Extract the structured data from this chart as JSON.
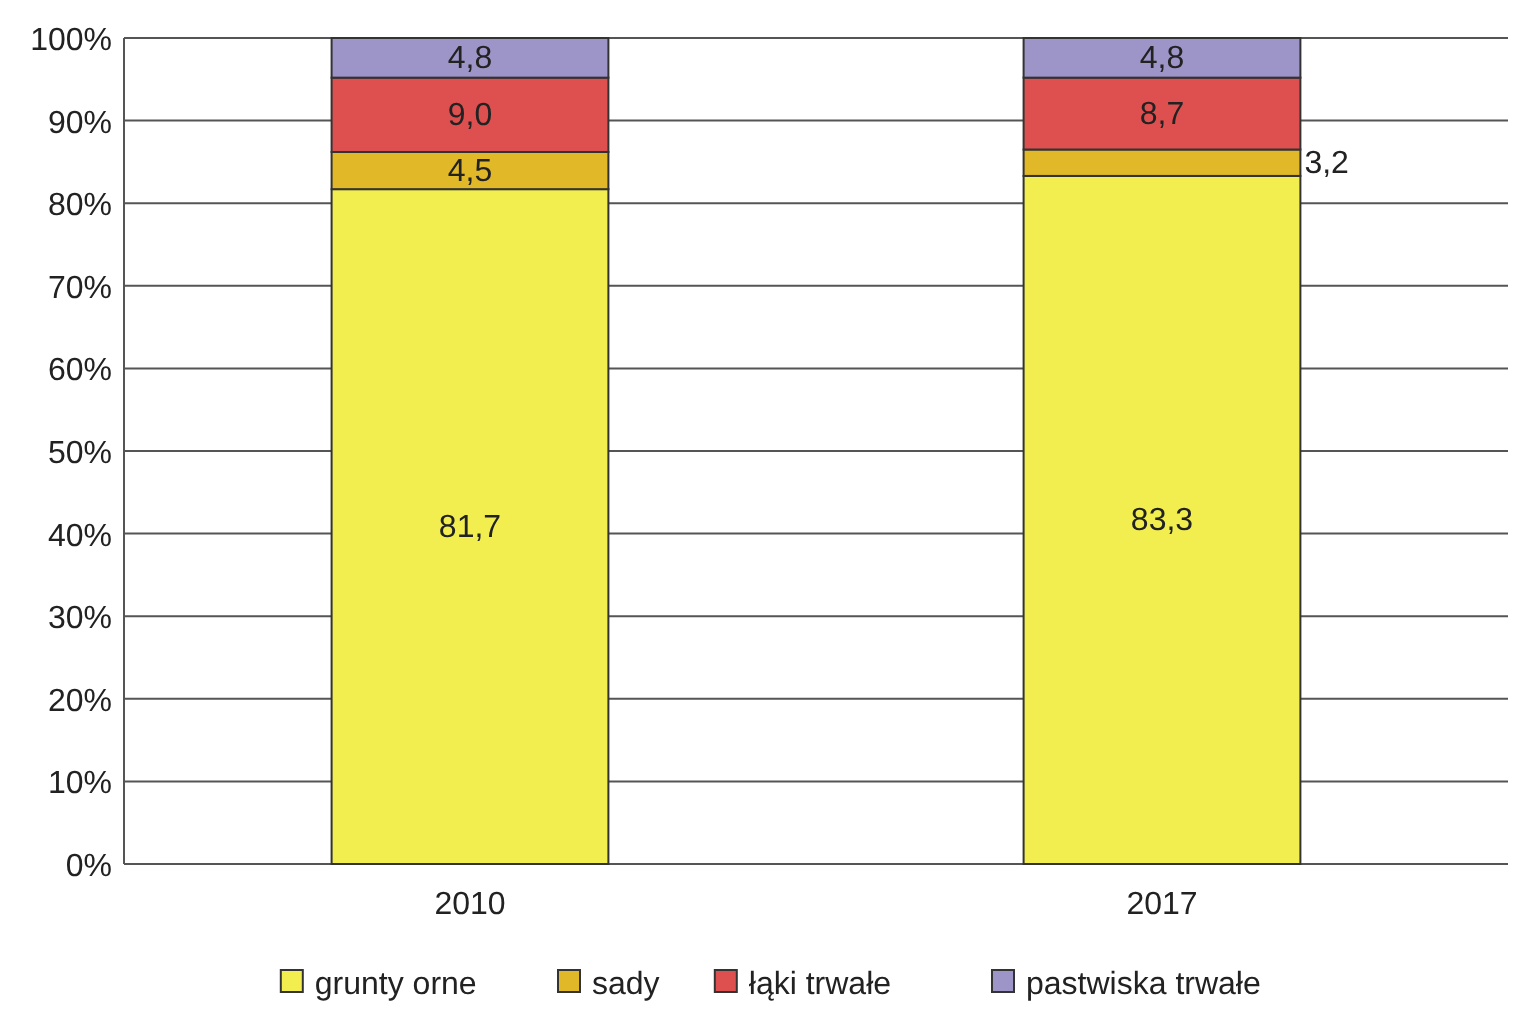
{
  "chart_data": {
    "type": "bar",
    "stacked": true,
    "categories": [
      "2010",
      "2017"
    ],
    "series": [
      {
        "name": "grunty orne",
        "color": "#f2ee50",
        "values": [
          81.7,
          83.3
        ],
        "value_labels": [
          "81,7",
          "83,3"
        ]
      },
      {
        "name": "sady",
        "color": "#e0b828",
        "values": [
          4.5,
          3.2
        ],
        "value_labels": [
          "4,5",
          "3,2"
        ]
      },
      {
        "name": "łąki trwałe",
        "color": "#de5050",
        "values": [
          9.0,
          8.7
        ],
        "value_labels": [
          "9,0",
          "8,7"
        ]
      },
      {
        "name": "pastwiska trwałe",
        "color": "#9d95c8",
        "values": [
          4.8,
          4.8
        ],
        "value_labels": [
          "4,8",
          "4,8"
        ]
      }
    ],
    "ylim": [
      0,
      100
    ],
    "yticks": [
      {
        "value": 0,
        "label": "0%"
      },
      {
        "value": 10,
        "label": "10%"
      },
      {
        "value": 20,
        "label": "20%"
      },
      {
        "value": 30,
        "label": "30%"
      },
      {
        "value": 40,
        "label": "40%"
      },
      {
        "value": 50,
        "label": "50%"
      },
      {
        "value": 60,
        "label": "60%"
      },
      {
        "value": 70,
        "label": "70%"
      },
      {
        "value": 80,
        "label": "80%"
      },
      {
        "value": 90,
        "label": "90%"
      },
      {
        "value": 100,
        "label": "100%"
      }
    ],
    "grid": "y",
    "legend": "bottom"
  }
}
